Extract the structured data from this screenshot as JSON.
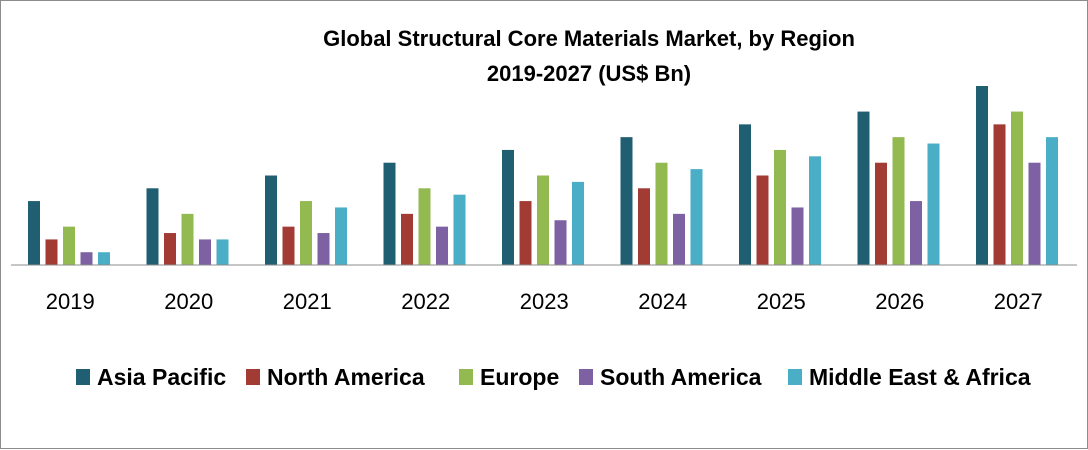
{
  "chart_data": {
    "type": "bar",
    "title": "Global Structural Core Materials Market, by Region",
    "subtitle": "2019-2027 (US$ Bn)",
    "xlabel": "",
    "ylabel": "",
    "ylim": [
      0,
      14
    ],
    "grid": false,
    "legend_position": "bottom",
    "categories": [
      "2019",
      "2020",
      "2021",
      "2022",
      "2023",
      "2024",
      "2025",
      "2026",
      "2027"
    ],
    "series": [
      {
        "name": "Asia Pacific",
        "color": "#1f5f71",
        "values": [
          5,
          6,
          7,
          8,
          9,
          10,
          11,
          12,
          14
        ]
      },
      {
        "name": "North America",
        "color": "#a23b34",
        "values": [
          2,
          2.5,
          3,
          4,
          5,
          6,
          7,
          8,
          11
        ]
      },
      {
        "name": "Europe",
        "color": "#93b951",
        "values": [
          3,
          4,
          5,
          6,
          7,
          8,
          9,
          10,
          12
        ]
      },
      {
        "name": "South America",
        "color": "#7d61a2",
        "values": [
          1,
          2,
          2.5,
          3,
          3.5,
          4,
          4.5,
          5,
          8
        ]
      },
      {
        "name": "Middle East & Africa",
        "color": "#4aaec6",
        "values": [
          1,
          2,
          4.5,
          5.5,
          6.5,
          7.5,
          8.5,
          9.5,
          10
        ]
      }
    ]
  }
}
